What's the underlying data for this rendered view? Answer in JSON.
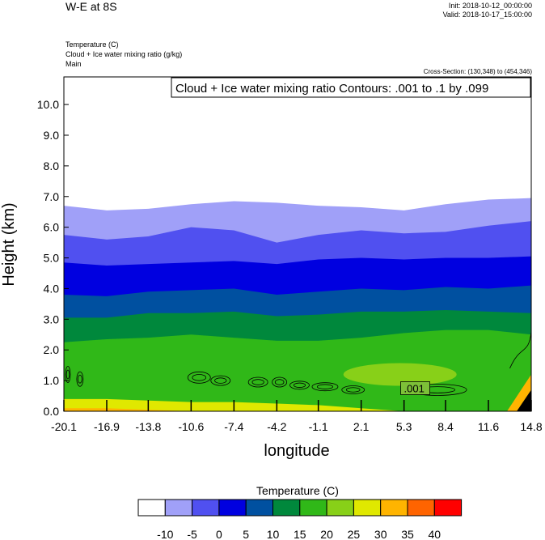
{
  "header": {
    "title": "W-E at 8S",
    "init": "Init: 2018-10-12_00:00:00",
    "valid": "Valid: 2018-10-17_15:00:00",
    "fields": [
      "Temperature   (C)",
      "Cloud + Ice water mixing ratio   (g/kg)",
      "Main"
    ],
    "cross_section": "Cross-Section: (130,348) to (454,346)"
  },
  "chart_data": {
    "type": "heatmap",
    "title": "W-E at 8S",
    "xlabel": "longitude",
    "ylabel": "Height (km)",
    "xlim": [
      -20.1,
      14.8
    ],
    "ylim": [
      0.0,
      10.9
    ],
    "x_ticks": [
      "-20.1",
      "-16.9",
      "-13.8",
      "-10.6",
      "-7.4",
      "-4.2",
      "-1.1",
      "2.1",
      "5.3",
      "8.4",
      "11.6",
      "14.8"
    ],
    "y_ticks": [
      "0.0",
      "1.0",
      "2.0",
      "3.0",
      "4.0",
      "5.0",
      "6.0",
      "7.0",
      "8.0",
      "9.0",
      "10.0"
    ],
    "contour_info": "Cloud + Ice water mixing ratio Contours: .001 to .1 by .099",
    "contour_label": ".001",
    "colorbar": {
      "title": "Temperature  (C)",
      "levels": [
        "-10",
        "-5",
        "0",
        "5",
        "10",
        "15",
        "20",
        "25",
        "30",
        "35",
        "40"
      ],
      "colors": [
        "#ffffff",
        "#a0a0f8",
        "#5050f0",
        "#0000e0",
        "#0050a0",
        "#00883c",
        "#30b818",
        "#88d018",
        "#e0e800",
        "#ffb400",
        "#ff6400",
        "#ff0000"
      ]
    },
    "temperature_isotherm_heights_km": [
      {
        "level": "-10",
        "x": [
          -20.1,
          -16.9,
          -13.8,
          -10.6,
          -7.4,
          -4.2,
          -1.1,
          2.1,
          5.3,
          8.4,
          11.6,
          14.8
        ],
        "y": [
          6.7,
          6.55,
          6.6,
          6.75,
          6.85,
          6.8,
          6.7,
          6.65,
          6.55,
          6.75,
          6.9,
          6.95
        ]
      },
      {
        "level": "-5",
        "x": [
          -20.1,
          -16.9,
          -13.8,
          -10.6,
          -7.4,
          -4.2,
          -1.1,
          2.1,
          5.3,
          8.4,
          11.6,
          14.8
        ],
        "y": [
          5.75,
          5.6,
          5.7,
          6.0,
          5.9,
          5.5,
          5.75,
          5.9,
          5.8,
          5.85,
          6.05,
          6.2
        ]
      },
      {
        "level": "0",
        "x": [
          -20.1,
          -16.9,
          -13.8,
          -10.6,
          -7.4,
          -4.2,
          -1.1,
          2.1,
          5.3,
          8.4,
          11.6,
          14.8
        ],
        "y": [
          4.85,
          4.75,
          4.8,
          4.85,
          4.9,
          4.8,
          4.95,
          5.0,
          4.95,
          5.0,
          5.0,
          5.05
        ]
      },
      {
        "level": "5",
        "x": [
          -20.1,
          -16.9,
          -13.8,
          -10.6,
          -7.4,
          -4.2,
          -1.1,
          2.1,
          5.3,
          8.4,
          11.6,
          14.8
        ],
        "y": [
          3.8,
          3.75,
          3.9,
          3.95,
          4.0,
          3.8,
          3.9,
          4.0,
          3.95,
          4.05,
          4.0,
          4.1
        ]
      },
      {
        "level": "10",
        "x": [
          -20.1,
          -16.9,
          -13.8,
          -10.6,
          -7.4,
          -4.2,
          -1.1,
          2.1,
          5.3,
          8.4,
          11.6,
          14.8
        ],
        "y": [
          3.05,
          3.05,
          3.2,
          3.2,
          3.25,
          3.1,
          3.15,
          3.25,
          3.25,
          3.3,
          3.25,
          3.2
        ]
      },
      {
        "level": "15",
        "x": [
          -20.1,
          -16.9,
          -13.8,
          -10.6,
          -7.4,
          -4.2,
          -1.1,
          2.1,
          5.3,
          8.4,
          11.6,
          14.8
        ],
        "y": [
          2.25,
          2.35,
          2.4,
          2.5,
          2.4,
          2.3,
          2.3,
          2.4,
          2.55,
          2.65,
          2.65,
          2.5
        ]
      },
      {
        "level": "25",
        "x": [
          -20.1,
          -16.9,
          -13.8,
          -10.6,
          -7.4,
          -4.2,
          -1.1,
          2.1,
          5.3,
          8.4,
          11.6,
          14.8
        ],
        "y": [
          0.4,
          0.4,
          0.35,
          0.3,
          0.3,
          0.25,
          0.2,
          0.1,
          0.0,
          0.0,
          0.0,
          0.0
        ]
      },
      {
        "level": "30",
        "x": [
          -20.1,
          -16.9,
          -13.8,
          -10.6,
          -7.4,
          -4.2,
          -1.1,
          2.1,
          5.3,
          8.4,
          11.6,
          14.8
        ],
        "y": [
          0.1,
          0.1,
          0.05,
          0.0,
          0.0,
          0.0,
          0.0,
          0.0,
          0.0,
          0.0,
          0.0,
          0.0
        ]
      }
    ]
  }
}
